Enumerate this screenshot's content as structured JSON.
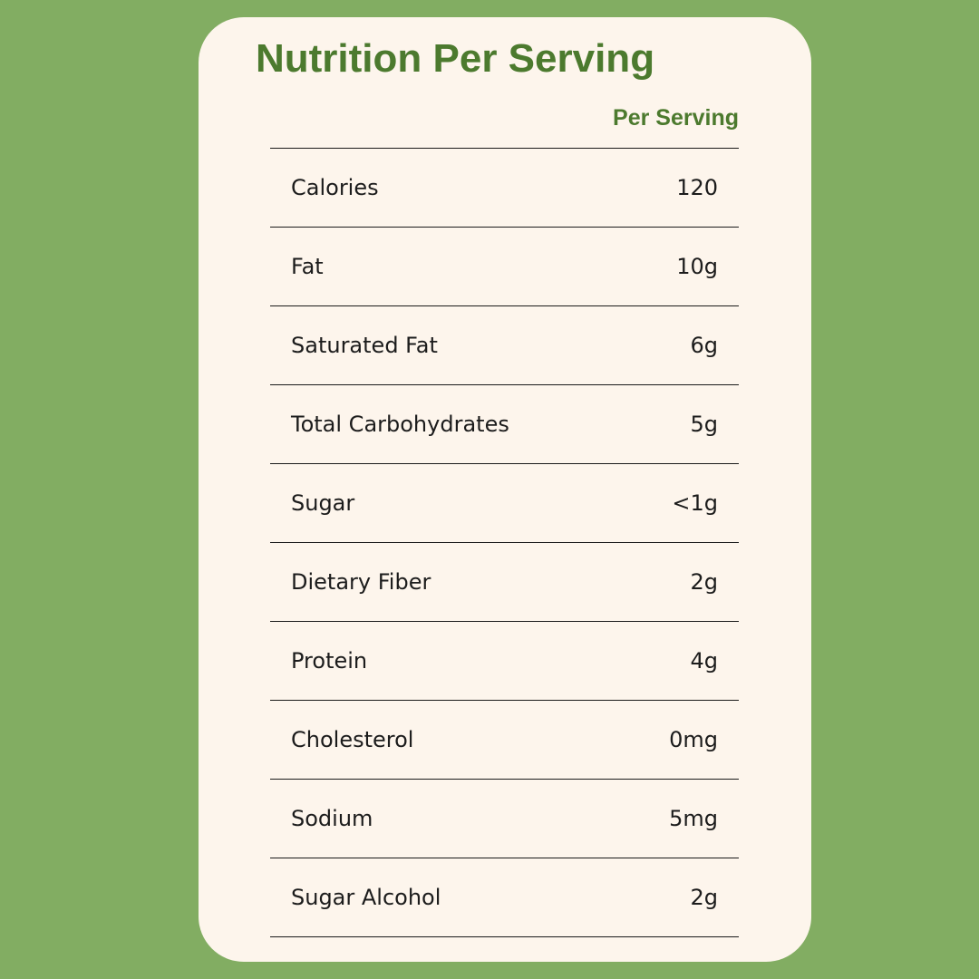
{
  "title": "Nutrition Per Serving",
  "column_header": "Per Serving",
  "colors": {
    "background": "#82ad62",
    "card": "#fdf5ec",
    "accent": "#4c7a2e",
    "text": "#1c1c1c"
  },
  "rows": [
    {
      "label": "Calories",
      "value": "120"
    },
    {
      "label": "Fat",
      "value": "10g"
    },
    {
      "label": "Saturated Fat",
      "value": "6g"
    },
    {
      "label": "Total Carbohydrates",
      "value": "5g"
    },
    {
      "label": "Sugar",
      "value": "<1g"
    },
    {
      "label": "Dietary Fiber",
      "value": "2g"
    },
    {
      "label": "Protein",
      "value": "4g"
    },
    {
      "label": "Cholesterol",
      "value": "0mg"
    },
    {
      "label": "Sodium",
      "value": "5mg"
    },
    {
      "label": "Sugar Alcohol",
      "value": "2g"
    }
  ]
}
